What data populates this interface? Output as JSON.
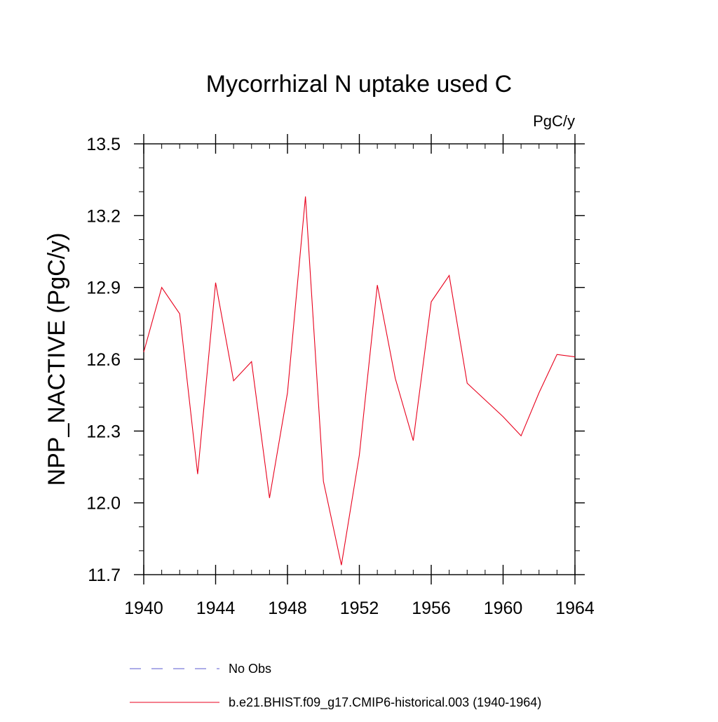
{
  "chart_data": {
    "type": "line",
    "title": "Mycorrhizal N uptake used C",
    "units_label": "PgC/y",
    "xlabel": "",
    "ylabel": "NPP_NACTIVE  (PgC/y)",
    "xlim": [
      1940,
      1964
    ],
    "ylim": [
      11.7,
      13.5
    ],
    "x_ticks": [
      1940,
      1944,
      1948,
      1952,
      1956,
      1960,
      1964
    ],
    "y_ticks": [
      11.7,
      12.0,
      12.3,
      12.6,
      12.9,
      13.2,
      13.5
    ],
    "y_tick_labels": [
      "11.7",
      "12.0",
      "12.3",
      "12.6",
      "12.9",
      "13.2",
      "13.5"
    ],
    "x_minor_step": 1,
    "y_minor_step": 0.1,
    "grid": false,
    "legend_position": "bottom-left",
    "series": [
      {
        "name": "b.e21.BHIST.f09_g17.CMIP6-historical.003 (1940-1964)",
        "color": "#e8001c",
        "style": "solid",
        "x": [
          1940,
          1941,
          1942,
          1943,
          1944,
          1945,
          1946,
          1947,
          1948,
          1949,
          1950,
          1951,
          1952,
          1953,
          1954,
          1955,
          1956,
          1957,
          1958,
          1959,
          1960,
          1961,
          1962,
          1963,
          1964
        ],
        "values": [
          12.63,
          12.9,
          12.79,
          12.12,
          12.92,
          12.51,
          12.59,
          12.02,
          12.46,
          13.28,
          12.09,
          11.74,
          12.2,
          12.91,
          12.52,
          12.26,
          12.84,
          12.95,
          12.5,
          12.43,
          12.36,
          12.28,
          12.46,
          12.62,
          12.61
        ]
      }
    ],
    "legend": [
      {
        "label": "No Obs",
        "color": "#5a5ad0",
        "style": "dashed"
      },
      {
        "label": "b.e21.BHIST.f09_g17.CMIP6-historical.003 (1940-1964)",
        "color": "#e8001c",
        "style": "solid"
      }
    ]
  }
}
